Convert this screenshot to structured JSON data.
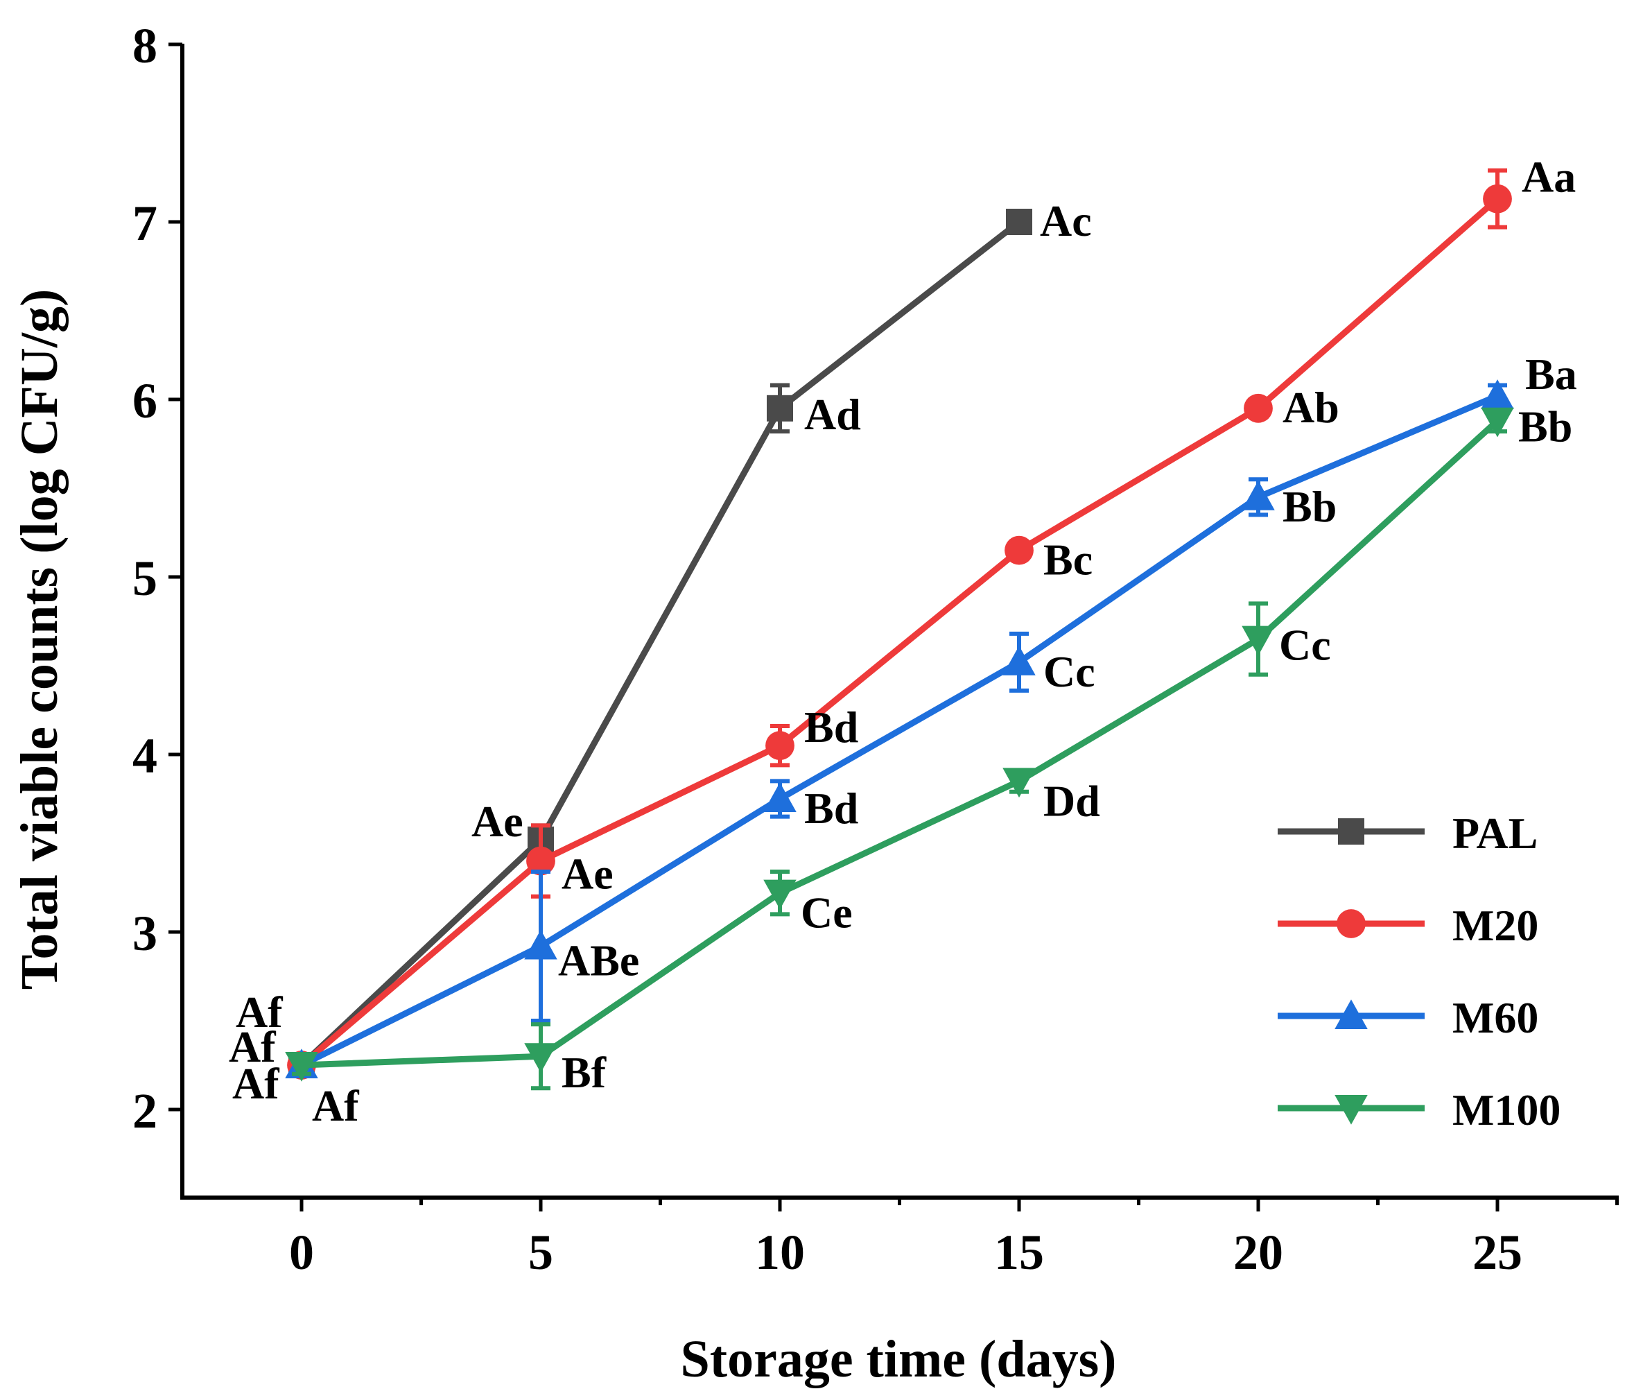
{
  "chart_data": {
    "type": "line",
    "xlabel": "Storage time (days)",
    "ylabel": "Total viable counts (log CFU/g)",
    "xlim": [
      -2.5,
      27.5
    ],
    "ylim": [
      1.5,
      8
    ],
    "xticks": [
      0,
      5,
      10,
      15,
      20,
      25
    ],
    "yticks": [
      2,
      3,
      4,
      5,
      6,
      7,
      8
    ],
    "grid": false,
    "legend_position": "bottom-right",
    "series": [
      {
        "name": "PAL",
        "color": "#4a4a4a",
        "marker": "square",
        "x": [
          0,
          5,
          10,
          15
        ],
        "y": [
          2.25,
          3.52,
          5.95,
          7.0
        ],
        "err": [
          0.05,
          0.08,
          0.13,
          0.04
        ],
        "labels": [
          "Af",
          "Ae",
          "Ad",
          "Ac"
        ]
      },
      {
        "name": "M20",
        "color": "#ee3a3a",
        "marker": "circle",
        "x": [
          0,
          5,
          10,
          15,
          20,
          25
        ],
        "y": [
          2.25,
          3.4,
          4.05,
          5.15,
          5.95,
          7.13
        ],
        "err": [
          0.05,
          0.2,
          0.11,
          0.05,
          0.05,
          0.16
        ],
        "labels": [
          "Af",
          "Ae",
          "Bd",
          "Bc",
          "Ab",
          "Aa"
        ]
      },
      {
        "name": "M60",
        "color": "#1e6fdc",
        "marker": "triangle-up",
        "x": [
          0,
          5,
          10,
          15,
          20,
          25
        ],
        "y": [
          2.25,
          2.92,
          3.75,
          4.52,
          5.45,
          6.02
        ],
        "err": [
          0.05,
          0.42,
          0.1,
          0.16,
          0.1,
          0.06
        ],
        "labels": [
          "Af",
          "ABe",
          "Bd",
          "Cc",
          "Bb",
          "Ba"
        ]
      },
      {
        "name": "M100",
        "color": "#2e9e5e",
        "marker": "triangle-down",
        "x": [
          0,
          5,
          10,
          15,
          20,
          25
        ],
        "y": [
          2.25,
          2.3,
          3.22,
          3.85,
          4.65,
          5.88
        ],
        "err": [
          0.05,
          0.18,
          0.12,
          0.06,
          0.2,
          0.06
        ],
        "labels": [
          "Af",
          "Bf",
          "Ce",
          "Dd",
          "Cc",
          "Bb"
        ]
      }
    ]
  }
}
